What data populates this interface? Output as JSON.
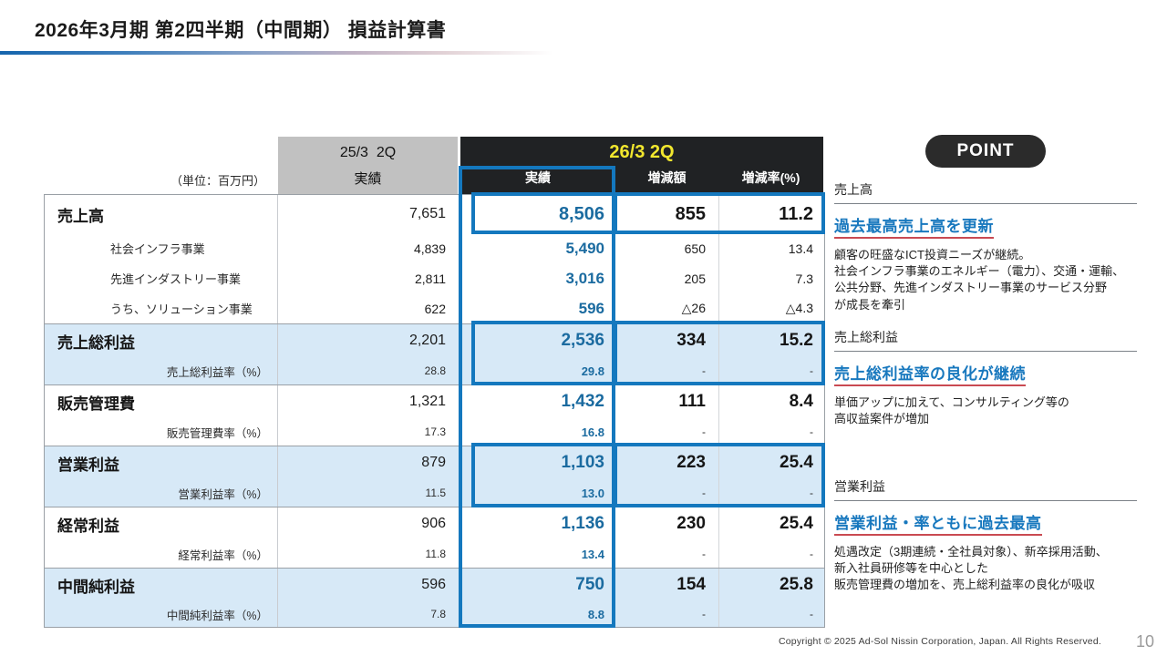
{
  "title": "2026年3月期 第2四半期（中間期） 損益計算書",
  "unit_label": "（単位：百万円）",
  "header": {
    "prev_period": "25/3  2Q",
    "prev_sub": "実績",
    "curr_period": "26/3 2Q",
    "curr_cols": [
      "実績",
      "増減額",
      "増減率(%)"
    ]
  },
  "table": {
    "rows": [
      {
        "type": "emph",
        "label": "売上高",
        "prev": "7,651",
        "actual": "8,506",
        "delta": "855",
        "rate": "11.2",
        "bg": "white",
        "sep": false
      },
      {
        "type": "sub",
        "label": "社会インフラ事業",
        "prev": "4,839",
        "actual": "5,490",
        "delta": "650",
        "rate": "13.4",
        "bg": "white",
        "sep": false
      },
      {
        "type": "sub",
        "label": "先進インダストリー事業",
        "prev": "2,811",
        "actual": "3,016",
        "delta": "205",
        "rate": "7.3",
        "bg": "white",
        "sep": false
      },
      {
        "type": "sub",
        "label": "うち、ソリューション事業",
        "prev": "622",
        "actual": "596",
        "delta": "△26",
        "rate": "△4.3",
        "bg": "white",
        "sep": false
      },
      {
        "type": "main",
        "label": "売上総利益",
        "prev": "2,201",
        "actual": "2,536",
        "delta": "334",
        "rate": "15.2",
        "bg": "blue",
        "sep": true
      },
      {
        "type": "rate",
        "label": "売上総利益率（%）",
        "prev": "28.8",
        "actual": "29.8",
        "delta": "-",
        "rate": "-",
        "bg": "blue",
        "sep": false
      },
      {
        "type": "main",
        "label": "販売管理費",
        "prev": "1,321",
        "actual": "1,432",
        "delta": "111",
        "rate": "8.4",
        "bg": "white",
        "sep": true
      },
      {
        "type": "rate",
        "label": "販売管理費率（%）",
        "prev": "17.3",
        "actual": "16.8",
        "delta": "-",
        "rate": "-",
        "bg": "white",
        "sep": false
      },
      {
        "type": "main",
        "label": "営業利益",
        "prev": "879",
        "actual": "1,103",
        "delta": "223",
        "rate": "25.4",
        "bg": "blue",
        "sep": true
      },
      {
        "type": "rate",
        "label": "営業利益率（%）",
        "prev": "11.5",
        "actual": "13.0",
        "delta": "-",
        "rate": "-",
        "bg": "blue",
        "sep": false
      },
      {
        "type": "main",
        "label": "経常利益",
        "prev": "906",
        "actual": "1,136",
        "delta": "230",
        "rate": "25.4",
        "bg": "white",
        "sep": true
      },
      {
        "type": "rate",
        "label": "経常利益率（%）",
        "prev": "11.8",
        "actual": "13.4",
        "delta": "-",
        "rate": "-",
        "bg": "white",
        "sep": false
      },
      {
        "type": "main",
        "label": "中間純利益",
        "prev": "596",
        "actual": "750",
        "delta": "154",
        "rate": "25.8",
        "bg": "blue",
        "sep": true
      },
      {
        "type": "last",
        "label": "中間純利益率（%）",
        "prev": "7.8",
        "actual": "8.8",
        "delta": "-",
        "rate": "-",
        "bg": "blue",
        "sep": false
      }
    ]
  },
  "point": {
    "badge": "POINT",
    "sections": [
      {
        "heading": "売上高",
        "headline": "過去最高売上高を更新",
        "body": "顧客の旺盛なICT投資ニーズが継続。\n社会インフラ事業のエネルギー（電力）、交通・運輸、\n公共分野、先進インダストリー事業のサービス分野\nが成長を牽引"
      },
      {
        "heading": "売上総利益",
        "headline": "売上総利益率の良化が継続",
        "body": "単価アップに加えて、コンサルティング等の\n高収益案件が増加"
      },
      {
        "heading": "営業利益",
        "headline": "営業利益・率ともに過去最高",
        "body": "処遇改定（3期連続・全社員対象）、新卒採用活動、\n新入社員研修等を中心とした\n販売管理費の増加を、売上総利益率の良化が吸収"
      }
    ]
  },
  "footer": {
    "copyright": "Copyright © 2025 Ad-Sol Nissin Corporation, Japan. All Rights Reserved.",
    "page": "10"
  },
  "colors": {
    "accent_blue_border": "#1478be",
    "value_blue": "#1b6ba0",
    "row_highlight_blue": "#d7e9f7",
    "header_black": "#202224",
    "header_gray": "#c1c1c1",
    "period_yellow": "#f2e72e",
    "headline_underline_red": "#c94a52"
  }
}
